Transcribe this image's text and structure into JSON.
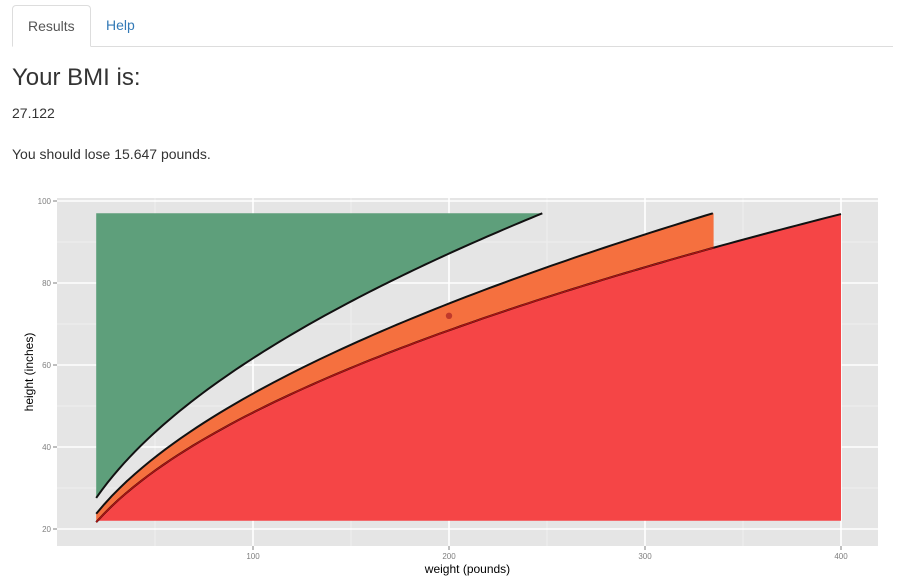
{
  "tabs": {
    "results_label": "Results",
    "help_label": "Help"
  },
  "main": {
    "heading": "Your BMI is:",
    "bmi_value": "27.122",
    "advice": "You should lose 15.647 pounds."
  },
  "colors": {
    "panel_bg": "#e5e5e5",
    "grid": "#ffffff",
    "healthy": "#5e9f7b",
    "overweight": "#f5703f",
    "obese": "#f54546",
    "point": "#c0392b"
  },
  "chart_data": {
    "type": "area",
    "title": "",
    "xlabel": "weight (pounds)",
    "ylabel": "height (inches)",
    "xlim": [
      3,
      420
    ],
    "ylim": [
      18,
      100
    ],
    "x_ticks": [
      100,
      200,
      300,
      400
    ],
    "y_ticks": [
      20,
      40,
      60,
      80,
      100
    ],
    "grid": true,
    "series": [
      {
        "key": "healthy",
        "x": [
          20,
          248
        ],
        "y_top": 97,
        "bmi_boundary": 18.5
      },
      {
        "key": "overweight",
        "x": [
          20,
          335
        ],
        "y_top": 97,
        "bmi_lower": 25,
        "bmi_upper": 30
      },
      {
        "key": "obese",
        "x": [
          20,
          400
        ],
        "y_bottom": 22,
        "bmi_boundary": 30
      }
    ],
    "point": {
      "x": 200,
      "y": 72
    }
  }
}
